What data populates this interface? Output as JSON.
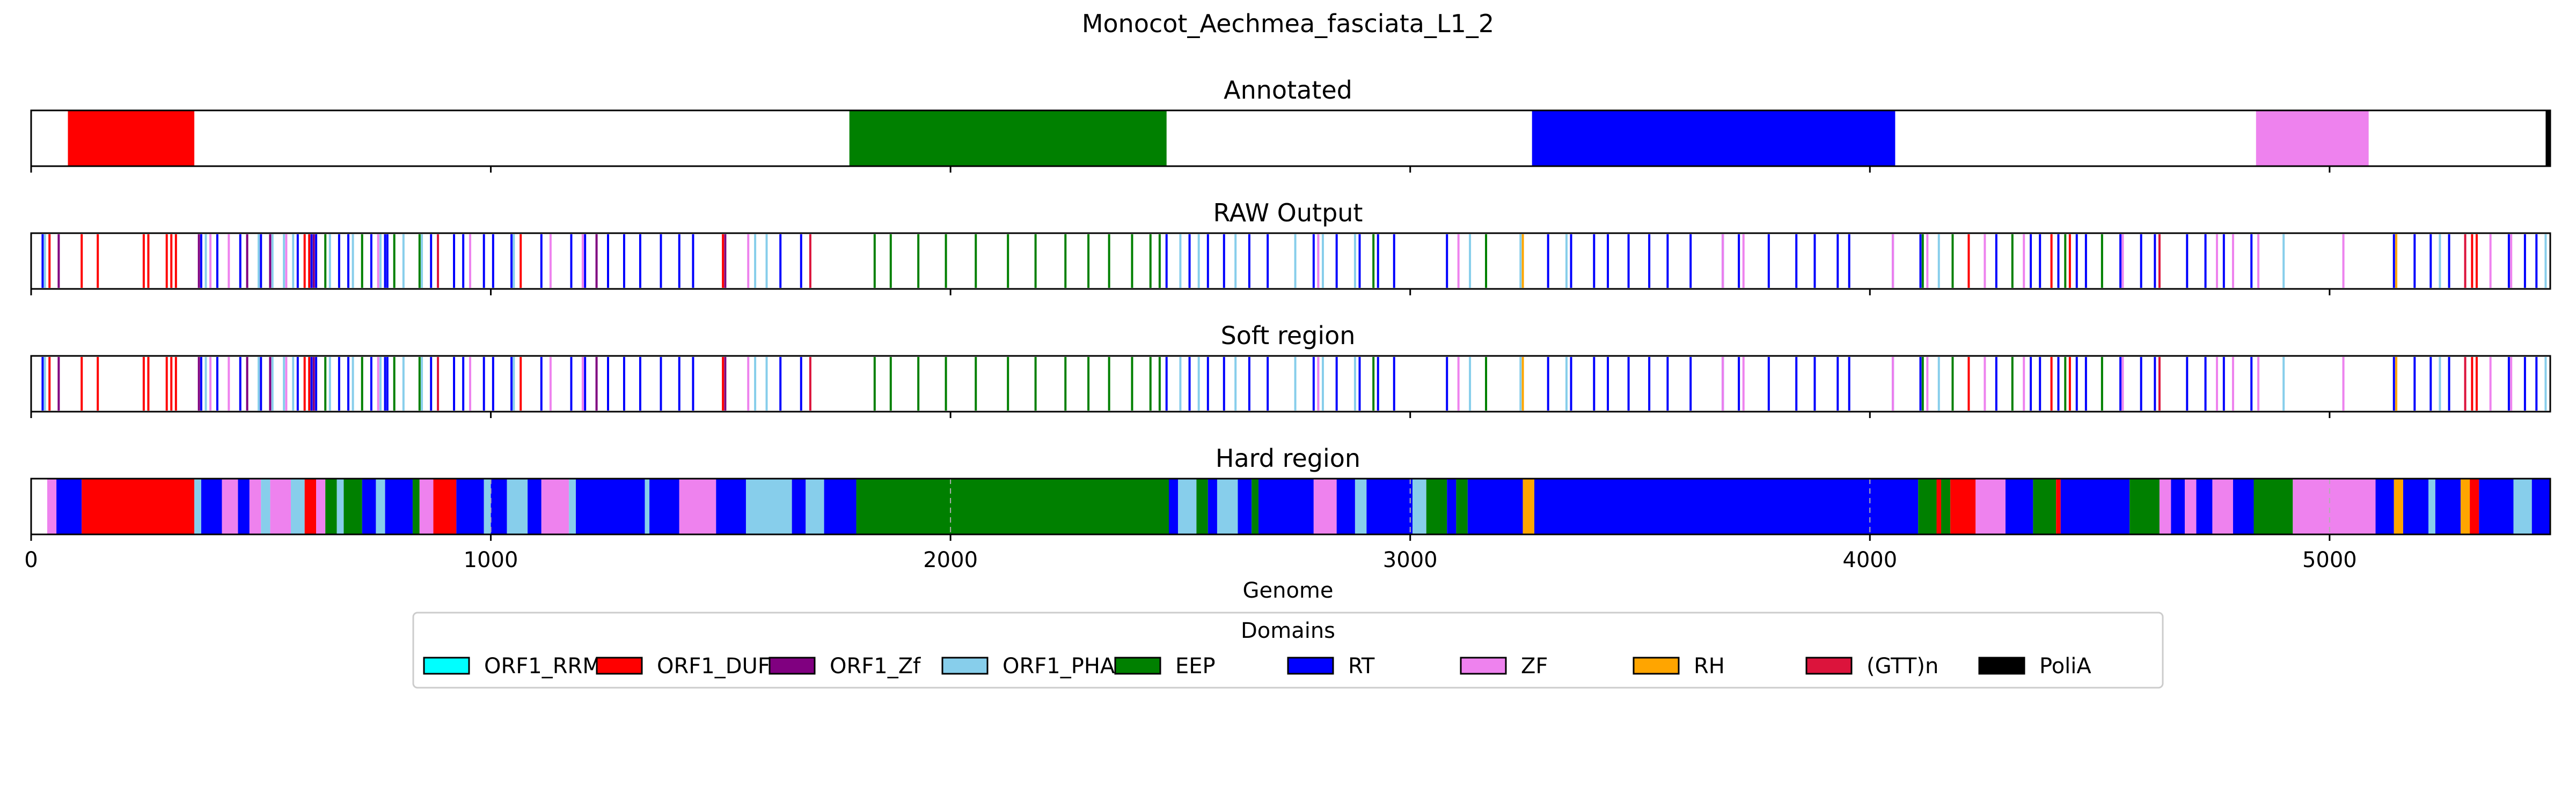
{
  "chart_data": {
    "type": "bar",
    "title": "Monocot_Aechmea_fasciata_L1_2",
    "xlabel": "Genome",
    "xlim": [
      0,
      5480
    ],
    "xticks": [
      0,
      1000,
      2000,
      3000,
      4000,
      5000
    ],
    "grid": "vertical dashed on Hard region",
    "legend_title": "Domains",
    "legend_position": "bottom-center",
    "legend": [
      {
        "name": "ORF1_RRM",
        "color": "#00ffff"
      },
      {
        "name": "ORF1_DUF",
        "color": "#ff0000"
      },
      {
        "name": "ORF1_Zf",
        "color": "#800080"
      },
      {
        "name": "ORF1_PHA",
        "color": "#87ceeb"
      },
      {
        "name": "EEP",
        "color": "#008000"
      },
      {
        "name": "RT",
        "color": "#0000ff"
      },
      {
        "name": "ZF",
        "color": "#ee82ee"
      },
      {
        "name": "RH",
        "color": "#ffa500"
      },
      {
        "name": "(GTT)n",
        "color": "#dc143c"
      },
      {
        "name": "PoliA",
        "color": "#000000"
      }
    ],
    "panels": [
      {
        "name": "Annotated",
        "kind": "blocks",
        "segments": [
          {
            "domain": "ORF1_DUF",
            "start": 80,
            "end": 355
          },
          {
            "domain": "EEP",
            "start": 1780,
            "end": 2470
          },
          {
            "domain": "RT",
            "start": 3265,
            "end": 4055
          },
          {
            "domain": "ZF",
            "start": 4840,
            "end": 5085
          },
          {
            "domain": "PoliA",
            "start": 5470,
            "end": 5480
          }
        ]
      },
      {
        "name": "RAW Output",
        "kind": "lines",
        "groups": [
          {
            "domain": "ORF1_DUF",
            "positions": [
              40,
              110,
              145,
              245,
              255,
              295,
              305,
              315,
              595,
              605,
              1065,
              1505,
              4215,
              4395,
              4435,
              5310,
              5320
            ]
          },
          {
            "domain": "ORF1_Zf",
            "positions": [
              60,
              365,
              470,
              520,
              615,
              1230,
              1510
            ]
          },
          {
            "domain": "ORF1_PHA",
            "positions": [
              30,
              380,
              495,
              525,
              550,
              570,
              650,
              700,
              760,
              810,
              850,
              1050,
              1575,
              1600,
              2500,
              2540,
              2620,
              2750,
              2800,
              2810,
              2880,
              3130,
              3240,
              3340,
              4150,
              4900,
              5030,
              5240,
              5470
            ]
          },
          {
            "domain": "EEP",
            "positions": [
              640,
              720,
              790,
              845,
              1835,
              1870,
              1930,
              1990,
              2055,
              2125,
              2185,
              2250,
              2300,
              2345,
              2395,
              2435,
              2455,
              2920,
              3165,
              4115,
              4180,
              4310,
              4425,
              4505
            ]
          },
          {
            "domain": "RT",
            "positions": [
              25,
              370,
              405,
              455,
              500,
              580,
              610,
              620,
              670,
              690,
              740,
              770,
              775,
              870,
              920,
              940,
              985,
              1005,
              1045,
              1110,
              1175,
              1205,
              1255,
              1290,
              1325,
              1370,
              1410,
              1440,
              1630,
              1675,
              2470,
              2520,
              2560,
              2595,
              2650,
              2690,
              2790,
              2840,
              2890,
              2930,
              2965,
              3080,
              3300,
              3350,
              3400,
              3430,
              3475,
              3520,
              3560,
              3610,
              3680,
              3715,
              3780,
              3840,
              3880,
              3930,
              3955,
              4050,
              4110,
              4275,
              4350,
              4370,
              4410,
              4450,
              4470,
              4545,
              4590,
              4620,
              4690,
              4730,
              4770,
              4830,
              5140,
              5185,
              5220,
              5260,
              5390,
              5425,
              5450
            ]
          },
          {
            "domain": "ZF",
            "positions": [
              390,
              430,
              555,
              755,
              955,
              1130,
              1200,
              1560,
              2800,
              3105,
              3680,
              3725,
              4050,
              4125,
              4250,
              4335,
              4550,
              4755,
              4790,
              4845,
              5030,
              5350,
              5395
            ]
          },
          {
            "domain": "RH",
            "positions": [
              3245,
              5145
            ]
          },
          {
            "domain": "(GTT)n",
            "positions": [
              885,
              1695,
              4630,
              5295
            ]
          }
        ]
      },
      {
        "name": "Soft region",
        "kind": "lines",
        "groups": [
          {
            "domain": "ORF1_DUF",
            "positions": [
              40,
              110,
              145,
              245,
              255,
              295,
              305,
              315,
              595,
              605,
              1065,
              1505,
              4215,
              4395,
              4435,
              5310,
              5320
            ]
          },
          {
            "domain": "ORF1_Zf",
            "positions": [
              60,
              365,
              470,
              520,
              615,
              1230,
              1510
            ]
          },
          {
            "domain": "ORF1_PHA",
            "positions": [
              30,
              380,
              495,
              525,
              550,
              570,
              650,
              700,
              760,
              810,
              850,
              1050,
              1575,
              1600,
              2500,
              2540,
              2620,
              2750,
              2800,
              2810,
              2880,
              3130,
              3240,
              3340,
              4150,
              4900,
              5030,
              5240,
              5470
            ]
          },
          {
            "domain": "EEP",
            "positions": [
              640,
              720,
              790,
              845,
              1835,
              1870,
              1930,
              1990,
              2055,
              2125,
              2185,
              2250,
              2300,
              2345,
              2395,
              2435,
              2455,
              2920,
              3165,
              4115,
              4180,
              4310,
              4425,
              4505
            ]
          },
          {
            "domain": "RT",
            "positions": [
              25,
              370,
              405,
              455,
              500,
              580,
              610,
              620,
              670,
              690,
              740,
              770,
              775,
              870,
              920,
              940,
              985,
              1005,
              1045,
              1110,
              1175,
              1205,
              1255,
              1290,
              1325,
              1370,
              1410,
              1440,
              1630,
              1675,
              2470,
              2520,
              2560,
              2595,
              2650,
              2690,
              2790,
              2840,
              2890,
              2930,
              2965,
              3080,
              3300,
              3350,
              3400,
              3430,
              3475,
              3520,
              3560,
              3610,
              3680,
              3715,
              3780,
              3840,
              3880,
              3930,
              3955,
              4050,
              4110,
              4275,
              4350,
              4370,
              4410,
              4450,
              4470,
              4545,
              4590,
              4620,
              4690,
              4730,
              4770,
              4830,
              5140,
              5185,
              5220,
              5260,
              5390,
              5425,
              5450
            ]
          },
          {
            "domain": "ZF",
            "positions": [
              390,
              430,
              555,
              755,
              955,
              1130,
              1200,
              1560,
              2800,
              3105,
              3680,
              3725,
              4050,
              4125,
              4250,
              4335,
              4550,
              4755,
              4790,
              4845,
              5030,
              5350,
              5395
            ]
          },
          {
            "domain": "RH",
            "positions": [
              3245,
              5145
            ]
          },
          {
            "domain": "(GTT)n",
            "positions": [
              885,
              1695,
              4630,
              5295
            ]
          }
        ]
      },
      {
        "name": "Hard region",
        "kind": "blocks",
        "segments": [
          {
            "domain": "ZF",
            "start": 35,
            "end": 55
          },
          {
            "domain": "RT",
            "start": 55,
            "end": 110
          },
          {
            "domain": "ORF1_DUF",
            "start": 110,
            "end": 355
          },
          {
            "domain": "ORF1_PHA",
            "start": 355,
            "end": 370
          },
          {
            "domain": "RT",
            "start": 370,
            "end": 415
          },
          {
            "domain": "ZF",
            "start": 415,
            "end": 450
          },
          {
            "domain": "RT",
            "start": 450,
            "end": 475
          },
          {
            "domain": "ZF",
            "start": 475,
            "end": 500
          },
          {
            "domain": "ORF1_PHA",
            "start": 500,
            "end": 520
          },
          {
            "domain": "ZF",
            "start": 520,
            "end": 565
          },
          {
            "domain": "ORF1_PHA",
            "start": 565,
            "end": 595
          },
          {
            "domain": "ORF1_DUF",
            "start": 595,
            "end": 620
          },
          {
            "domain": "ZF",
            "start": 620,
            "end": 640
          },
          {
            "domain": "EEP",
            "start": 640,
            "end": 665
          },
          {
            "domain": "ORF1_PHA",
            "start": 665,
            "end": 680
          },
          {
            "domain": "EEP",
            "start": 680,
            "end": 720
          },
          {
            "domain": "RT",
            "start": 720,
            "end": 750
          },
          {
            "domain": "ORF1_PHA",
            "start": 750,
            "end": 770
          },
          {
            "domain": "RT",
            "start": 770,
            "end": 830
          },
          {
            "domain": "EEP",
            "start": 830,
            "end": 845
          },
          {
            "domain": "ZF",
            "start": 845,
            "end": 875
          },
          {
            "domain": "ORF1_DUF",
            "start": 875,
            "end": 925
          },
          {
            "domain": "RT",
            "start": 925,
            "end": 985
          },
          {
            "domain": "ORF1_PHA",
            "start": 985,
            "end": 1000
          },
          {
            "domain": "RT",
            "start": 1000,
            "end": 1035
          },
          {
            "domain": "ORF1_PHA",
            "start": 1035,
            "end": 1080
          },
          {
            "domain": "RT",
            "start": 1080,
            "end": 1110
          },
          {
            "domain": "ZF",
            "start": 1110,
            "end": 1170
          },
          {
            "domain": "ORF1_PHA",
            "start": 1170,
            "end": 1185
          },
          {
            "domain": "RT",
            "start": 1185,
            "end": 1335
          },
          {
            "domain": "ORF1_PHA",
            "start": 1335,
            "end": 1345
          },
          {
            "domain": "RT",
            "start": 1345,
            "end": 1410
          },
          {
            "domain": "ZF",
            "start": 1410,
            "end": 1490
          },
          {
            "domain": "RT",
            "start": 1490,
            "end": 1555
          },
          {
            "domain": "ORF1_PHA",
            "start": 1555,
            "end": 1655
          },
          {
            "domain": "RT",
            "start": 1655,
            "end": 1685
          },
          {
            "domain": "ORF1_PHA",
            "start": 1685,
            "end": 1725
          },
          {
            "domain": "RT",
            "start": 1725,
            "end": 1795
          },
          {
            "domain": "EEP",
            "start": 1795,
            "end": 2475
          },
          {
            "domain": "RT",
            "start": 2475,
            "end": 2495
          },
          {
            "domain": "ORF1_PHA",
            "start": 2495,
            "end": 2535
          },
          {
            "domain": "EEP",
            "start": 2535,
            "end": 2560
          },
          {
            "domain": "RT",
            "start": 2560,
            "end": 2580
          },
          {
            "domain": "ORF1_PHA",
            "start": 2580,
            "end": 2625
          },
          {
            "domain": "RT",
            "start": 2625,
            "end": 2655
          },
          {
            "domain": "EEP",
            "start": 2655,
            "end": 2670
          },
          {
            "domain": "RT",
            "start": 2670,
            "end": 2790
          },
          {
            "domain": "ZF",
            "start": 2790,
            "end": 2840
          },
          {
            "domain": "RT",
            "start": 2840,
            "end": 2880
          },
          {
            "domain": "ORF1_PHA",
            "start": 2880,
            "end": 2905
          },
          {
            "domain": "RT",
            "start": 2905,
            "end": 3005
          },
          {
            "domain": "ORF1_PHA",
            "start": 3005,
            "end": 3035
          },
          {
            "domain": "EEP",
            "start": 3035,
            "end": 3080
          },
          {
            "domain": "RT",
            "start": 3080,
            "end": 3100
          },
          {
            "domain": "EEP",
            "start": 3100,
            "end": 3125
          },
          {
            "domain": "RT",
            "start": 3125,
            "end": 3245
          },
          {
            "domain": "RH",
            "start": 3245,
            "end": 3270
          },
          {
            "domain": "RT",
            "start": 3270,
            "end": 4105
          },
          {
            "domain": "EEP",
            "start": 4105,
            "end": 4145
          },
          {
            "domain": "ORF1_DUF",
            "start": 4145,
            "end": 4155
          },
          {
            "domain": "EEP",
            "start": 4155,
            "end": 4175
          },
          {
            "domain": "ORF1_DUF",
            "start": 4175,
            "end": 4230
          },
          {
            "domain": "ZF",
            "start": 4230,
            "end": 4295
          },
          {
            "domain": "RT",
            "start": 4295,
            "end": 4355
          },
          {
            "domain": "EEP",
            "start": 4355,
            "end": 4405
          },
          {
            "domain": "ORF1_DUF",
            "start": 4405,
            "end": 4415
          },
          {
            "domain": "RT",
            "start": 4415,
            "end": 4565
          },
          {
            "domain": "EEP",
            "start": 4565,
            "end": 4630
          },
          {
            "domain": "ZF",
            "start": 4630,
            "end": 4655
          },
          {
            "domain": "RT",
            "start": 4655,
            "end": 4685
          },
          {
            "domain": "ZF",
            "start": 4685,
            "end": 4710
          },
          {
            "domain": "RT",
            "start": 4710,
            "end": 4745
          },
          {
            "domain": "ZF",
            "start": 4745,
            "end": 4790
          },
          {
            "domain": "RT",
            "start": 4790,
            "end": 4835
          },
          {
            "domain": "EEP",
            "start": 4835,
            "end": 4920
          },
          {
            "domain": "ZF",
            "start": 4920,
            "end": 5100
          },
          {
            "domain": "RT",
            "start": 5100,
            "end": 5140
          },
          {
            "domain": "RH",
            "start": 5140,
            "end": 5160
          },
          {
            "domain": "RT",
            "start": 5160,
            "end": 5215
          },
          {
            "domain": "ORF1_PHA",
            "start": 5215,
            "end": 5230
          },
          {
            "domain": "RT",
            "start": 5230,
            "end": 5285
          },
          {
            "domain": "RH",
            "start": 5285,
            "end": 5305
          },
          {
            "domain": "ORF1_DUF",
            "start": 5305,
            "end": 5325
          },
          {
            "domain": "RT",
            "start": 5325,
            "end": 5400
          },
          {
            "domain": "ORF1_PHA",
            "start": 5400,
            "end": 5440
          },
          {
            "domain": "RT",
            "start": 5440,
            "end": 5480
          }
        ]
      }
    ]
  }
}
